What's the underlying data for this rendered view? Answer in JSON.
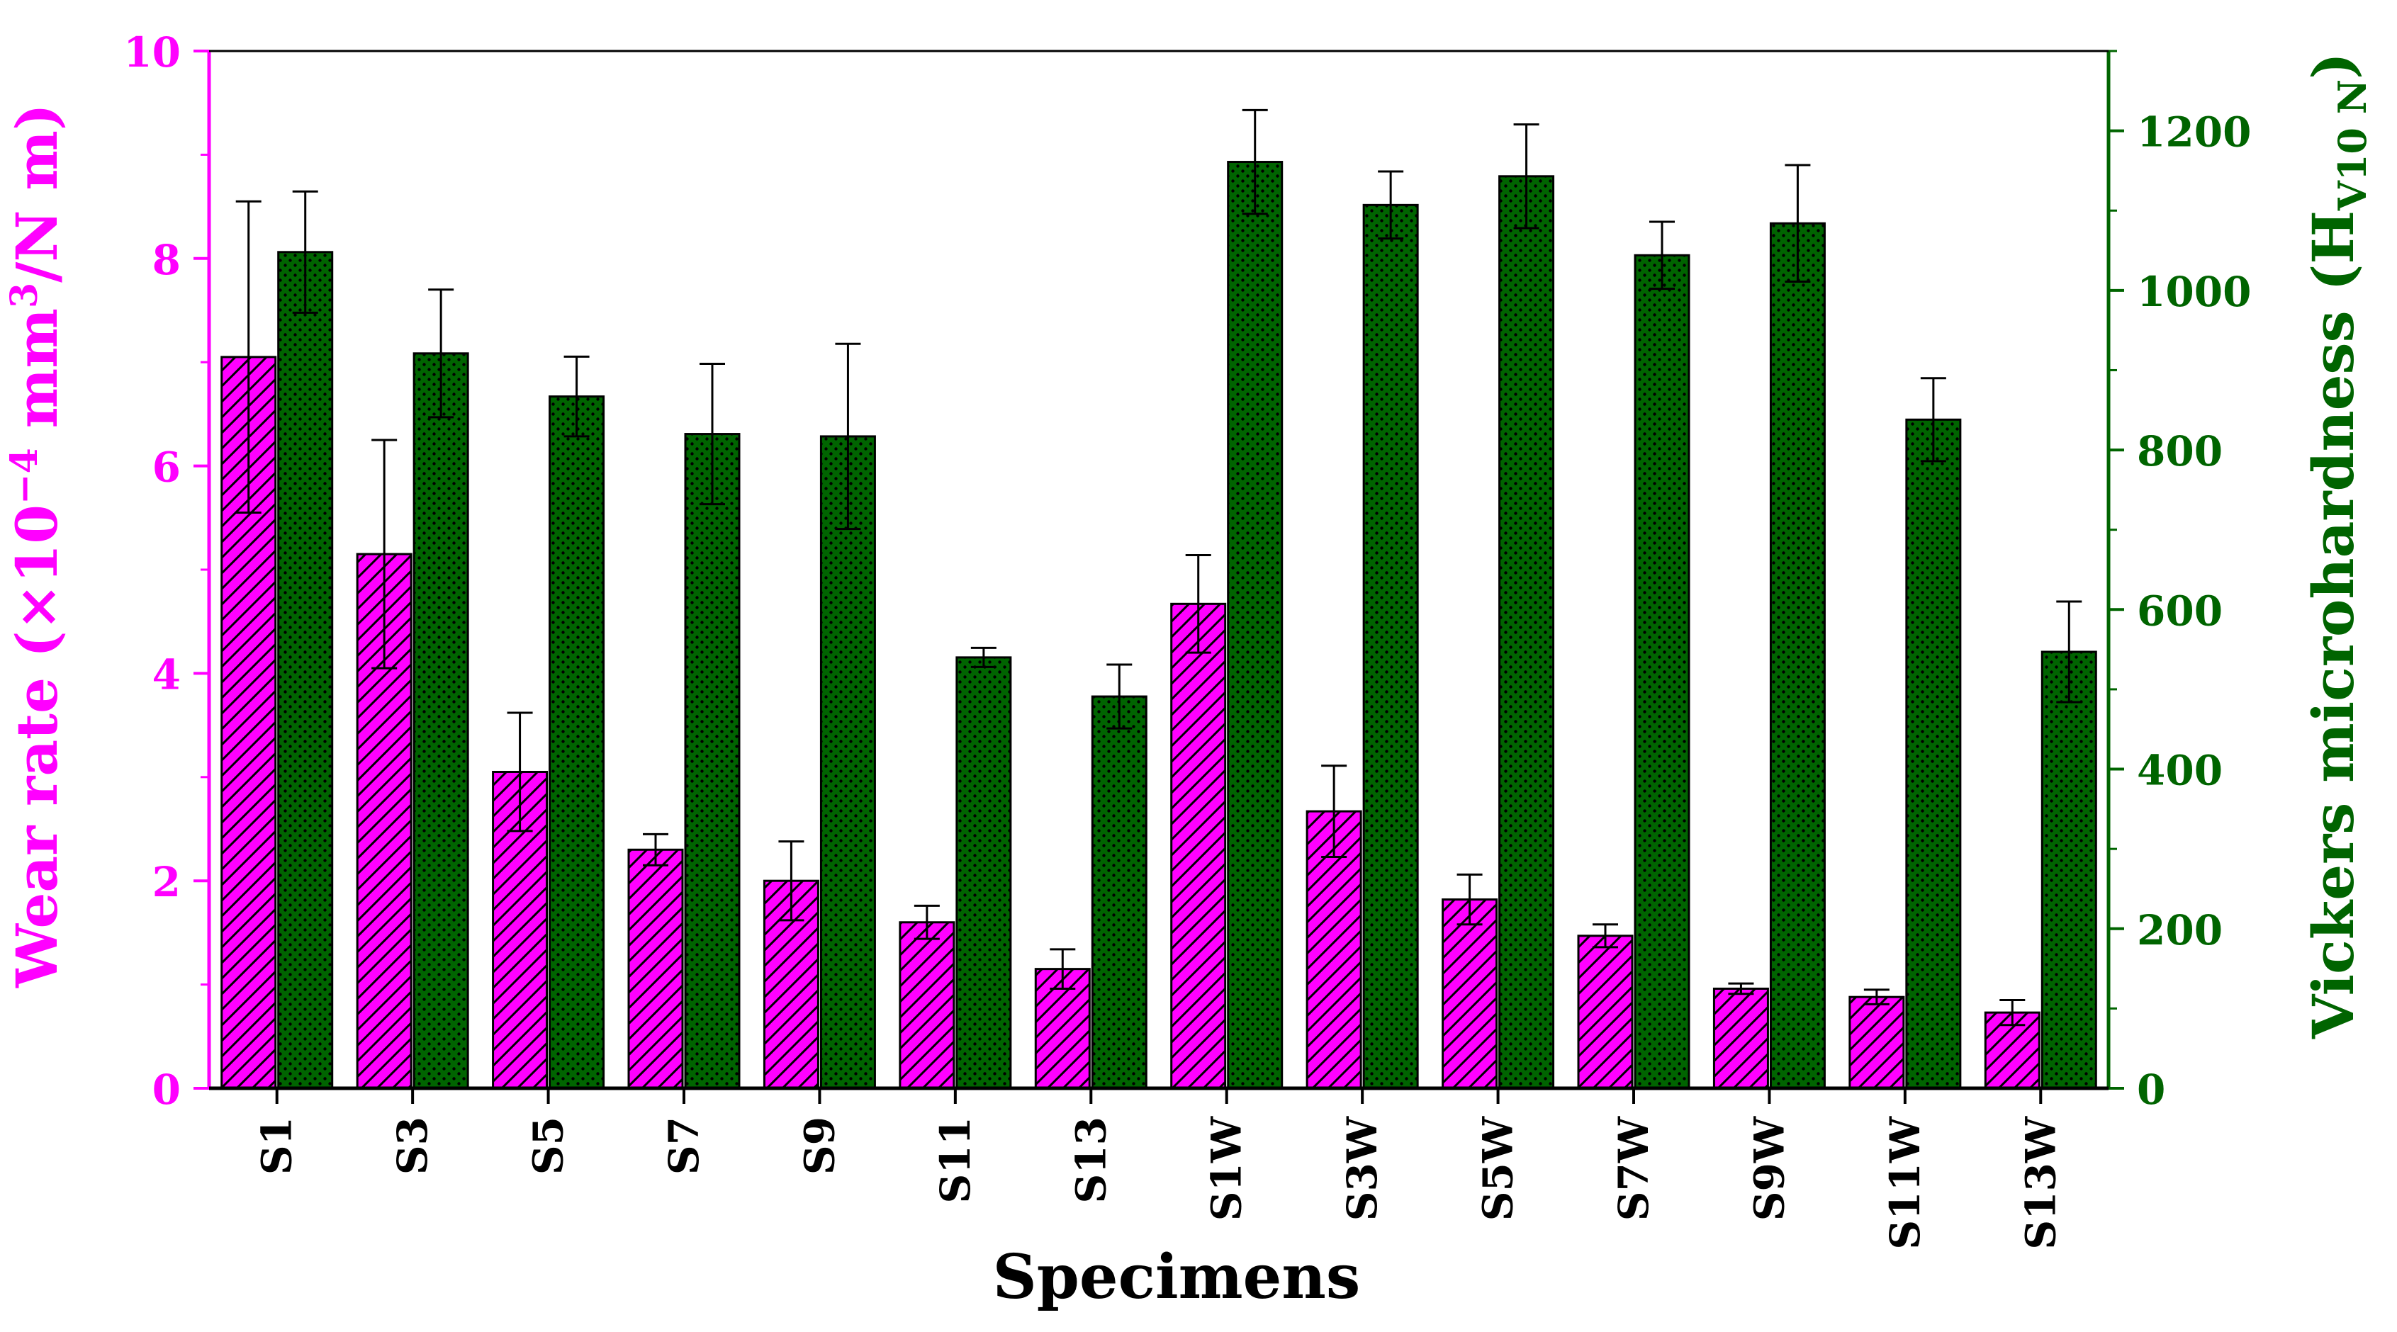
{
  "chart_data": {
    "type": "bar",
    "xlabel": "Specimens",
    "categories": [
      "S1",
      "S3",
      "S5",
      "S7",
      "S9",
      "S11",
      "S13",
      "S1W",
      "S3W",
      "S5W",
      "S7W",
      "S9W",
      "S11W",
      "S13W"
    ],
    "left_axis": {
      "label_prefix": "Wear rate (×10",
      "label_exp": "−4",
      "label_mid": " mm",
      "label_sup": "3",
      "label_suffix": "/N m)",
      "ylim": [
        0,
        10
      ],
      "ticks": [
        "0",
        "2",
        "4",
        "6",
        "8",
        "10"
      ],
      "tick_values": [
        0,
        2,
        4,
        6,
        8,
        10
      ],
      "color": "#ff00ff"
    },
    "right_axis": {
      "label_main": "Vickers microhardness (H",
      "label_sub": "V10 N",
      "label_suffix": ")",
      "ylim": [
        0,
        1300
      ],
      "ticks": [
        "0",
        "200",
        "400",
        "600",
        "800",
        "1000",
        "1200"
      ],
      "tick_values": [
        0,
        200,
        400,
        600,
        800,
        1000,
        1200
      ],
      "color": "#006400"
    },
    "series": [
      {
        "name": "Wear rate",
        "axis": "left",
        "color": "#ff00ff",
        "pattern": "hatch",
        "values": [
          7.05,
          5.15,
          3.05,
          2.3,
          2.0,
          1.6,
          1.15,
          4.67,
          2.67,
          1.82,
          1.47,
          0.96,
          0.88,
          0.73
        ],
        "errors": [
          1.5,
          1.1,
          0.57,
          0.15,
          0.38,
          0.16,
          0.19,
          0.47,
          0.44,
          0.24,
          0.11,
          0.05,
          0.07,
          0.12
        ]
      },
      {
        "name": "Vickers microhardness",
        "axis": "right",
        "color": "#006400",
        "pattern": "dots",
        "values": [
          1048,
          921,
          867,
          820,
          817,
          540,
          491,
          1161,
          1107,
          1143,
          1044,
          1084,
          838,
          547
        ],
        "errors": [
          76,
          80,
          50,
          88,
          116,
          12,
          40,
          65,
          42,
          65,
          42,
          73,
          52,
          63
        ]
      }
    ]
  }
}
